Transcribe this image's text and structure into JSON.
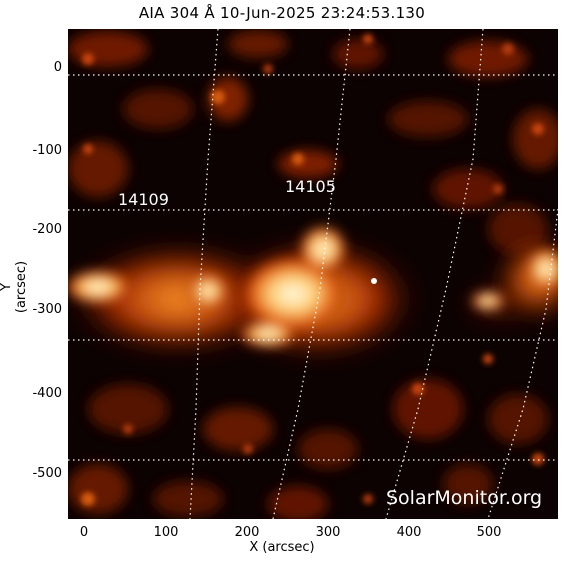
{
  "title": "AIA 304 Å 10-Jun-2025 23:24:53.130",
  "axes": {
    "xlabel": "X (arcsec)",
    "ylabel": "Y (arcsec)",
    "xticks": [
      "0",
      "100",
      "200",
      "300",
      "400",
      "500"
    ],
    "yticks": [
      "0",
      "-100",
      "-200",
      "-300",
      "-400",
      "-500"
    ]
  },
  "regions": [
    {
      "label": "14109"
    },
    {
      "label": "14105"
    }
  ],
  "watermark": "SolarMonitor.org",
  "colors": {
    "background": "#0c0201",
    "active": "#ff8a1a",
    "bright": "#fff3d6",
    "grid": "#ffffff"
  }
}
